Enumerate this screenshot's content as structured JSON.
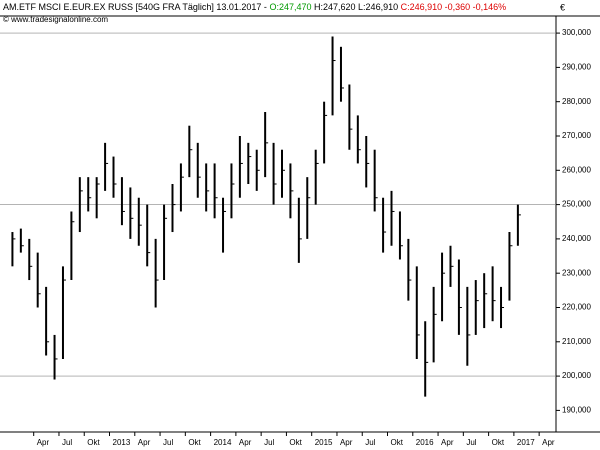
{
  "header": {
    "title": "AM.ETF MSCI E.EUR.EX RUSS [540G FRA  Täglich] 13.01.2017 -",
    "open": "O:247,470",
    "open_color": "#009900",
    "high_low": "H:247,620 L:246,910",
    "close": "C:246,910 -0,360 -0,146%",
    "close_color": "#dd0000",
    "source": "© www.tradesignalonline.com",
    "currency": "€"
  },
  "chart_data": {
    "type": "ohlc",
    "color": "#000000",
    "x": [
      "2012-01",
      "2012-02",
      "2012-03",
      "2012-04",
      "2012-05",
      "2012-06",
      "2012-07",
      "2012-08",
      "2012-09",
      "2012-10",
      "2012-11",
      "2012-12",
      "2013-01",
      "2013-02",
      "2013-03",
      "2013-04",
      "2013-05",
      "2013-06",
      "2013-07",
      "2013-08",
      "2013-09",
      "2013-10",
      "2013-11",
      "2013-12",
      "2014-01",
      "2014-02",
      "2014-03",
      "2014-04",
      "2014-05",
      "2014-06",
      "2014-07",
      "2014-08",
      "2014-09",
      "2014-10",
      "2014-11",
      "2014-12",
      "2015-01",
      "2015-02",
      "2015-03",
      "2015-04",
      "2015-05",
      "2015-06",
      "2015-07",
      "2015-08",
      "2015-09",
      "2015-10",
      "2015-11",
      "2015-12",
      "2016-01",
      "2016-02",
      "2016-03",
      "2016-04",
      "2016-05",
      "2016-06",
      "2016-07",
      "2016-08",
      "2016-09",
      "2016-10",
      "2016-11",
      "2016-12",
      "2017-01"
    ],
    "high": [
      242,
      243,
      240,
      236,
      226,
      212,
      232,
      248,
      258,
      258,
      258,
      268,
      264,
      258,
      255,
      252,
      250,
      240,
      250,
      256,
      262,
      273,
      268,
      262,
      262,
      252,
      262,
      270,
      268,
      266,
      277,
      268,
      266,
      262,
      252,
      258,
      266,
      280,
      299,
      296,
      285,
      276,
      270,
      266,
      252,
      254,
      248,
      240,
      232,
      216,
      226,
      236,
      238,
      234,
      226,
      228,
      230,
      232,
      226,
      242,
      250
    ],
    "low": [
      232,
      236,
      228,
      220,
      206,
      199,
      205,
      228,
      242,
      248,
      246,
      254,
      252,
      244,
      240,
      238,
      232,
      220,
      228,
      242,
      248,
      258,
      252,
      248,
      246,
      236,
      246,
      252,
      256,
      254,
      258,
      250,
      252,
      246,
      233,
      240,
      250,
      262,
      276,
      280,
      266,
      262,
      255,
      248,
      236,
      238,
      234,
      222,
      205,
      194,
      204,
      216,
      226,
      212,
      203,
      212,
      214,
      216,
      214,
      222,
      238
    ],
    "close": [
      240,
      238,
      232,
      224,
      210,
      205,
      228,
      245,
      254,
      252,
      256,
      262,
      256,
      248,
      246,
      244,
      236,
      228,
      246,
      250,
      258,
      266,
      258,
      254,
      252,
      248,
      256,
      262,
      264,
      260,
      268,
      256,
      260,
      254,
      240,
      252,
      262,
      276,
      292,
      284,
      272,
      266,
      262,
      252,
      242,
      248,
      238,
      228,
      212,
      204,
      218,
      230,
      232,
      220,
      212,
      222,
      224,
      222,
      220,
      238,
      247
    ],
    "xlim": [
      "2011-12",
      "2017-06"
    ],
    "xticks": [
      {
        "value": "2012-04",
        "label": "Apr"
      },
      {
        "value": "2012-07",
        "label": "Jul"
      },
      {
        "value": "2012-10",
        "label": "Okt"
      },
      {
        "value": "2013-01",
        "label": "2013"
      },
      {
        "value": "2013-04",
        "label": "Apr"
      },
      {
        "value": "2013-07",
        "label": "Jul"
      },
      {
        "value": "2013-10",
        "label": "Okt"
      },
      {
        "value": "2014-01",
        "label": "2014"
      },
      {
        "value": "2014-04",
        "label": "Apr"
      },
      {
        "value": "2014-07",
        "label": "Jul"
      },
      {
        "value": "2014-10",
        "label": "Okt"
      },
      {
        "value": "2015-01",
        "label": "2015"
      },
      {
        "value": "2015-04",
        "label": "Apr"
      },
      {
        "value": "2015-07",
        "label": "Jul"
      },
      {
        "value": "2015-10",
        "label": "Okt"
      },
      {
        "value": "2016-01",
        "label": "2016"
      },
      {
        "value": "2016-04",
        "label": "Apr"
      },
      {
        "value": "2016-07",
        "label": "Jul"
      },
      {
        "value": "2016-10",
        "label": "Okt"
      },
      {
        "value": "2017-01",
        "label": "2017"
      },
      {
        "value": "2017-04",
        "label": "Apr"
      }
    ],
    "ylim": [
      183.7,
      304.4
    ],
    "yticks": [
      {
        "value": 190,
        "label": "190,000"
      },
      {
        "value": 200,
        "label": "200,000"
      },
      {
        "value": 210,
        "label": "210,000"
      },
      {
        "value": 220,
        "label": "220,000"
      },
      {
        "value": 230,
        "label": "230,000"
      },
      {
        "value": 240,
        "label": "240,000"
      },
      {
        "value": 250,
        "label": "250,000"
      },
      {
        "value": 260,
        "label": "260,000"
      },
      {
        "value": 270,
        "label": "270,000"
      },
      {
        "value": 280,
        "label": "280,000"
      },
      {
        "value": 290,
        "label": "290,000"
      },
      {
        "value": 300,
        "label": "300,000"
      }
    ],
    "ygrid": [
      200,
      250,
      300
    ]
  }
}
